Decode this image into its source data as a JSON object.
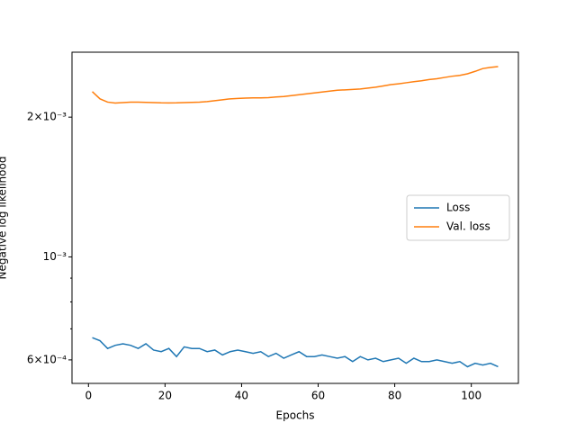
{
  "chart_data": {
    "type": "line",
    "xlabel": "Epochs",
    "ylabel": "Negative log likelihood",
    "log_y": true,
    "legend": "center right",
    "x": [
      1,
      3,
      5,
      7,
      9,
      11,
      13,
      15,
      17,
      19,
      21,
      23,
      25,
      27,
      29,
      31,
      33,
      35,
      37,
      39,
      41,
      43,
      45,
      47,
      49,
      51,
      53,
      55,
      57,
      59,
      61,
      63,
      65,
      67,
      69,
      71,
      73,
      75,
      77,
      79,
      81,
      83,
      85,
      87,
      89,
      91,
      93,
      95,
      97,
      99,
      101,
      103,
      105,
      107
    ],
    "series": [
      {
        "name": "Loss",
        "color": "#1f77b4",
        "values": [
          0.00067,
          0.00066,
          0.000635,
          0.000645,
          0.00065,
          0.000645,
          0.000635,
          0.00065,
          0.00063,
          0.000625,
          0.000635,
          0.00061,
          0.00064,
          0.000635,
          0.000635,
          0.000625,
          0.00063,
          0.000615,
          0.000625,
          0.00063,
          0.000625,
          0.00062,
          0.000625,
          0.00061,
          0.00062,
          0.000605,
          0.000615,
          0.000625,
          0.00061,
          0.00061,
          0.000615,
          0.00061,
          0.000605,
          0.00061,
          0.000595,
          0.00061,
          0.0006,
          0.000605,
          0.000595,
          0.0006,
          0.000605,
          0.00059,
          0.000605,
          0.000595,
          0.000595,
          0.0006,
          0.000595,
          0.00059,
          0.000595,
          0.00058,
          0.00059,
          0.000585,
          0.00059,
          0.00058
        ]
      },
      {
        "name": "Val. loss",
        "color": "#ff7f0e",
        "values": [
          0.00227,
          0.00219,
          0.002155,
          0.002145,
          0.00215,
          0.002155,
          0.002155,
          0.002152,
          0.00215,
          0.002147,
          0.002146,
          0.002147,
          0.00215,
          0.002152,
          0.002155,
          0.00216,
          0.00217,
          0.00218,
          0.00219,
          0.002195,
          0.002198,
          0.0022,
          0.0022,
          0.002203,
          0.00221,
          0.002215,
          0.002225,
          0.002235,
          0.002245,
          0.002255,
          0.002265,
          0.002275,
          0.002285,
          0.00229,
          0.002295,
          0.0023,
          0.00231,
          0.00232,
          0.002335,
          0.00235,
          0.00236,
          0.002372,
          0.002385,
          0.002395,
          0.00241,
          0.00242,
          0.002435,
          0.00245,
          0.00246,
          0.00248,
          0.00251,
          0.002545,
          0.00256,
          0.00257
        ]
      }
    ],
    "xlim": [
      -4.3,
      112.3
    ],
    "xticks": [
      0,
      20,
      40,
      60,
      80,
      100
    ],
    "ylim": [
      0.000534,
      0.00276
    ],
    "yticks": [
      {
        "value": 0.0006,
        "label": "6×10⁻⁴"
      },
      {
        "value": 0.001,
        "label": "10⁻³"
      },
      {
        "value": 0.002,
        "label": "2×10⁻³"
      }
    ],
    "minor_yticks": [
      0.0007,
      0.0008,
      0.0009
    ]
  }
}
